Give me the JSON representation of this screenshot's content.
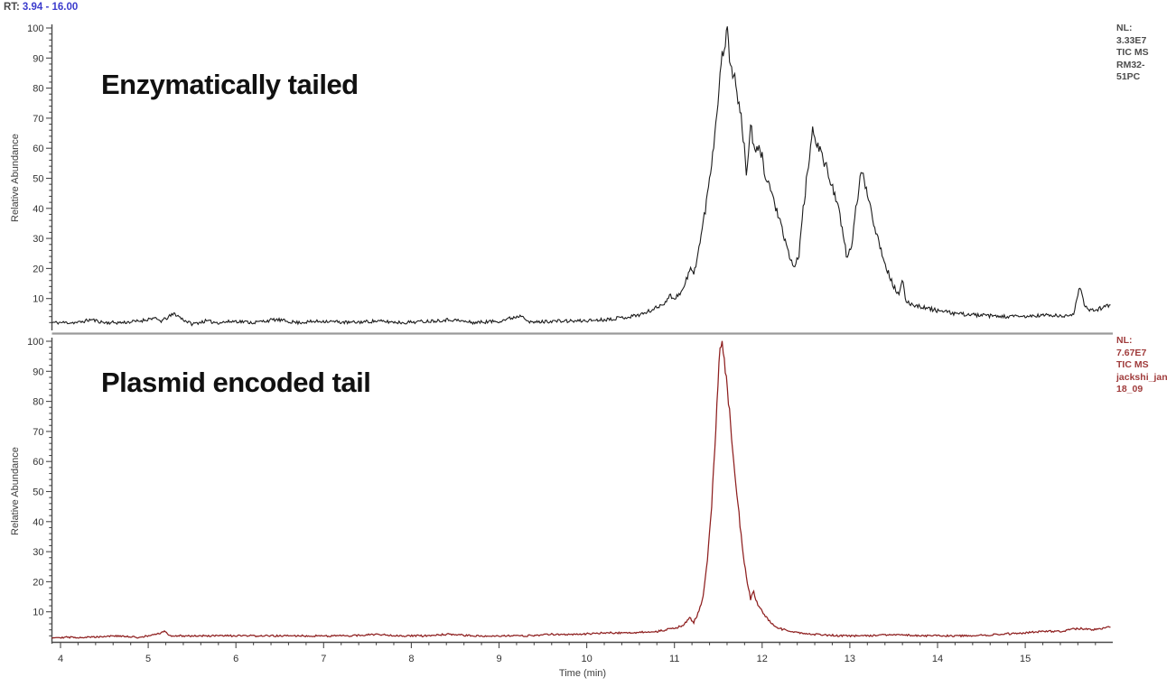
{
  "header": {
    "rt_label": "RT:",
    "rt_value": "3.94 - 16.00"
  },
  "x_axis": {
    "label": "Time (min)",
    "ticks": [
      4,
      5,
      6,
      7,
      8,
      9,
      10,
      11,
      12,
      13,
      14,
      15
    ],
    "min": 4,
    "max": 16,
    "minor_step": 0.2
  },
  "y_axis": {
    "title": "Relative Abundance",
    "ticks": [
      10,
      20,
      30,
      40,
      50,
      60,
      70,
      80,
      90,
      100
    ],
    "minor_step": 2,
    "min": 0,
    "max": 100
  },
  "panels": [
    {
      "label": "Enzymatically tailed",
      "trace_color": "#1b1b1b",
      "annotation": {
        "color": "#4d4d4d",
        "lines": [
          "NL:",
          "3.33E7",
          "TIC MS",
          "RM32-",
          "51PC"
        ]
      }
    },
    {
      "label": "Plasmid encoded tail",
      "trace_color": "#8e1f1f",
      "annotation": {
        "color": "#a03c3c",
        "lines": [
          "NL:",
          "7.67E7",
          "TIC MS",
          "jackshi_jan",
          "18_09"
        ]
      }
    }
  ],
  "chart_data": {
    "type": "line",
    "title": "",
    "xlabel": "Time (min)",
    "ylabel": "Relative Abundance",
    "xlim": [
      4,
      16
    ],
    "ylim": [
      0,
      100
    ],
    "grid": false,
    "legend_position": "none",
    "series": [
      {
        "name": "Enzymatically tailed",
        "nl": "3.33E7",
        "source": "TIC MS RM32-51PC",
        "color": "#1b1b1b",
        "noise": {
          "base": 0.5,
          "peak_factor": 0.028,
          "seed": 11
        },
        "anchors": [
          [
            3.9,
            2
          ],
          [
            4.0,
            2
          ],
          [
            4.2,
            2
          ],
          [
            4.35,
            3
          ],
          [
            4.5,
            2
          ],
          [
            4.7,
            2
          ],
          [
            4.9,
            2.5
          ],
          [
            5.05,
            3.5
          ],
          [
            5.15,
            2.5
          ],
          [
            5.3,
            5
          ],
          [
            5.4,
            3
          ],
          [
            5.5,
            1.5
          ],
          [
            5.65,
            2.5
          ],
          [
            5.8,
            2
          ],
          [
            6.0,
            2.5
          ],
          [
            6.2,
            2
          ],
          [
            6.45,
            3
          ],
          [
            6.7,
            2
          ],
          [
            7.0,
            2.5
          ],
          [
            7.3,
            2
          ],
          [
            7.6,
            2.5
          ],
          [
            7.9,
            2
          ],
          [
            8.2,
            2.5
          ],
          [
            8.45,
            3
          ],
          [
            8.7,
            2
          ],
          [
            9.0,
            2.5
          ],
          [
            9.27,
            4.5
          ],
          [
            9.35,
            2
          ],
          [
            9.6,
            2.5
          ],
          [
            9.9,
            2.5
          ],
          [
            10.2,
            3
          ],
          [
            10.5,
            4
          ],
          [
            10.65,
            5
          ],
          [
            10.8,
            7
          ],
          [
            10.9,
            9
          ],
          [
            10.95,
            11
          ],
          [
            11.0,
            10
          ],
          [
            11.1,
            13
          ],
          [
            11.18,
            20
          ],
          [
            11.22,
            18
          ],
          [
            11.3,
            30
          ],
          [
            11.38,
            45
          ],
          [
            11.45,
            62
          ],
          [
            11.5,
            78
          ],
          [
            11.55,
            92
          ],
          [
            11.6,
            100
          ],
          [
            11.63,
            90
          ],
          [
            11.67,
            85
          ],
          [
            11.72,
            78
          ],
          [
            11.78,
            65
          ],
          [
            11.82,
            52
          ],
          [
            11.87,
            67
          ],
          [
            11.92,
            58
          ],
          [
            11.98,
            60
          ],
          [
            12.03,
            52
          ],
          [
            12.1,
            46
          ],
          [
            12.18,
            38
          ],
          [
            12.25,
            30
          ],
          [
            12.3,
            25
          ],
          [
            12.37,
            20
          ],
          [
            12.42,
            25
          ],
          [
            12.47,
            40
          ],
          [
            12.53,
            55
          ],
          [
            12.58,
            66
          ],
          [
            12.63,
            62
          ],
          [
            12.7,
            56
          ],
          [
            12.77,
            50
          ],
          [
            12.83,
            45
          ],
          [
            12.88,
            38
          ],
          [
            12.93,
            30
          ],
          [
            12.97,
            23
          ],
          [
            13.02,
            28
          ],
          [
            13.08,
            42
          ],
          [
            13.13,
            52
          ],
          [
            13.18,
            48
          ],
          [
            13.24,
            40
          ],
          [
            13.3,
            32
          ],
          [
            13.36,
            26
          ],
          [
            13.42,
            20
          ],
          [
            13.5,
            14
          ],
          [
            13.56,
            11
          ],
          [
            13.6,
            16
          ],
          [
            13.64,
            9
          ],
          [
            13.72,
            8
          ],
          [
            13.85,
            7
          ],
          [
            14.0,
            6
          ],
          [
            14.2,
            5
          ],
          [
            14.45,
            4.5
          ],
          [
            14.7,
            4
          ],
          [
            15.0,
            4
          ],
          [
            15.25,
            4.5
          ],
          [
            15.45,
            4
          ],
          [
            15.55,
            5
          ],
          [
            15.62,
            14
          ],
          [
            15.68,
            7
          ],
          [
            15.78,
            6
          ],
          [
            15.88,
            7
          ],
          [
            15.97,
            8
          ]
        ]
      },
      {
        "name": "Plasmid encoded tail",
        "nl": "7.67E7",
        "source": "TIC MS jackshi_jan18_09",
        "color": "#8e1f1f",
        "noise": {
          "base": 0.25,
          "peak_factor": 0.02,
          "seed": 29
        },
        "anchors": [
          [
            3.9,
            1.5
          ],
          [
            4.3,
            1.5
          ],
          [
            4.6,
            2
          ],
          [
            4.9,
            1.5
          ],
          [
            5.1,
            2.5
          ],
          [
            5.18,
            3.5
          ],
          [
            5.25,
            2
          ],
          [
            5.5,
            2
          ],
          [
            5.8,
            2
          ],
          [
            6.1,
            2
          ],
          [
            6.4,
            2
          ],
          [
            6.7,
            2
          ],
          [
            7.0,
            2
          ],
          [
            7.3,
            2
          ],
          [
            7.6,
            2.5
          ],
          [
            7.9,
            2
          ],
          [
            8.2,
            2
          ],
          [
            8.4,
            2.5
          ],
          [
            8.7,
            2
          ],
          [
            9.0,
            2
          ],
          [
            9.3,
            2
          ],
          [
            9.6,
            2.5
          ],
          [
            9.9,
            2.5
          ],
          [
            10.2,
            3
          ],
          [
            10.5,
            3
          ],
          [
            10.8,
            3.5
          ],
          [
            11.0,
            4.5
          ],
          [
            11.1,
            5.5
          ],
          [
            11.17,
            8
          ],
          [
            11.22,
            6.5
          ],
          [
            11.28,
            10
          ],
          [
            11.33,
            16
          ],
          [
            11.38,
            28
          ],
          [
            11.43,
            48
          ],
          [
            11.47,
            70
          ],
          [
            11.5,
            88
          ],
          [
            11.53,
            100
          ],
          [
            11.56,
            96
          ],
          [
            11.6,
            86
          ],
          [
            11.64,
            72
          ],
          [
            11.68,
            58
          ],
          [
            11.73,
            44
          ],
          [
            11.78,
            30
          ],
          [
            11.83,
            20
          ],
          [
            11.87,
            14
          ],
          [
            11.9,
            17
          ],
          [
            11.94,
            13
          ],
          [
            12.0,
            10
          ],
          [
            12.08,
            7
          ],
          [
            12.15,
            5
          ],
          [
            12.25,
            4
          ],
          [
            12.4,
            3
          ],
          [
            12.6,
            2.5
          ],
          [
            12.9,
            2
          ],
          [
            13.2,
            2
          ],
          [
            13.5,
            2.5
          ],
          [
            13.8,
            2
          ],
          [
            14.1,
            2
          ],
          [
            14.4,
            2
          ],
          [
            14.7,
            2.5
          ],
          [
            15.0,
            3
          ],
          [
            15.2,
            3.5
          ],
          [
            15.4,
            3.5
          ],
          [
            15.6,
            4.5
          ],
          [
            15.75,
            4
          ],
          [
            15.9,
            4.5
          ],
          [
            15.97,
            5
          ]
        ]
      }
    ]
  },
  "colors": {
    "axis": "#4a4a4a",
    "divider": "#9a9a9a",
    "tick_label": "#333333",
    "rt_value_blue": "#3c3ccd"
  }
}
